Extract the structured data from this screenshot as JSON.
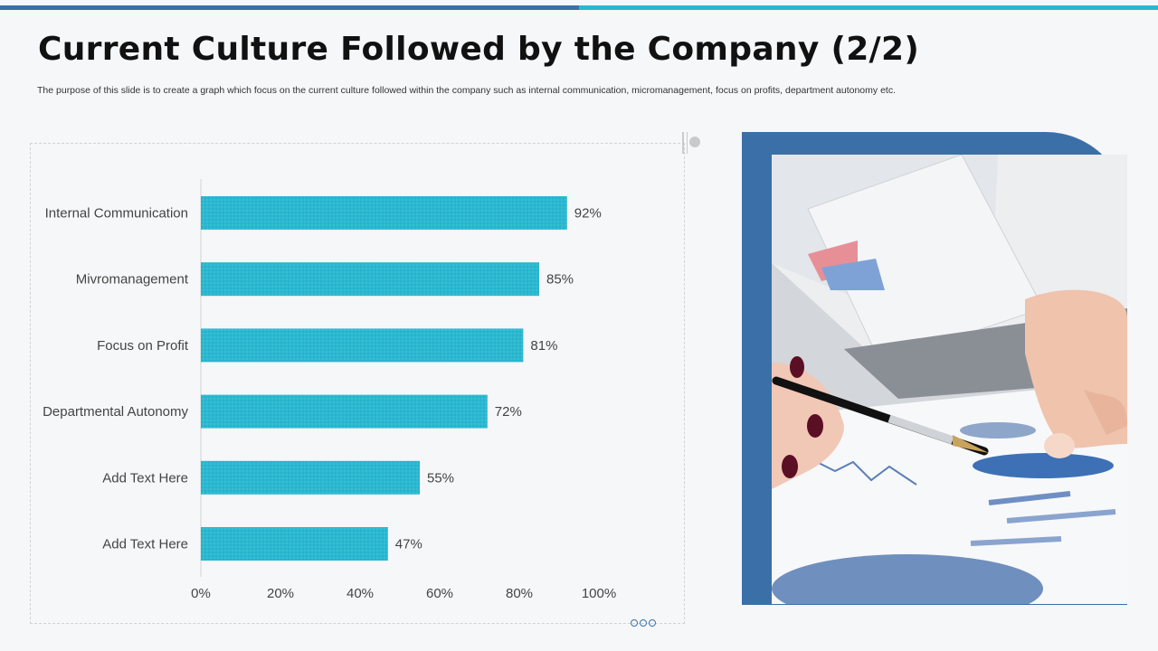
{
  "slide": {
    "title": "Current Culture Followed by the Company (2/2)",
    "subtitle": "The purpose of this slide is to create a graph which focus on the current culture followed within the company such as internal communication, micromanagement, focus on profits, department autonomy etc."
  },
  "colors": {
    "bar": "#2ab7d0",
    "accent_dark": "#3b6fa7",
    "accent_light": "#2ab7d0"
  },
  "chart_data": {
    "type": "bar",
    "orientation": "horizontal",
    "categories": [
      "Internal Communication",
      "Mivromanagement",
      "Focus on Profit",
      "Departmental Autonomy",
      "Add Text Here",
      "Add Text Here"
    ],
    "values": [
      92,
      85,
      81,
      72,
      55,
      47
    ],
    "value_labels": [
      "92%",
      "85%",
      "81%",
      "72%",
      "55%",
      "47%"
    ],
    "xlim": [
      0,
      100
    ],
    "xticks": [
      0,
      20,
      40,
      60,
      80,
      100
    ],
    "xtick_labels": [
      "0%",
      "20%",
      "40%",
      "60%",
      "80%",
      "100%"
    ],
    "grid": false,
    "legend": "none"
  }
}
